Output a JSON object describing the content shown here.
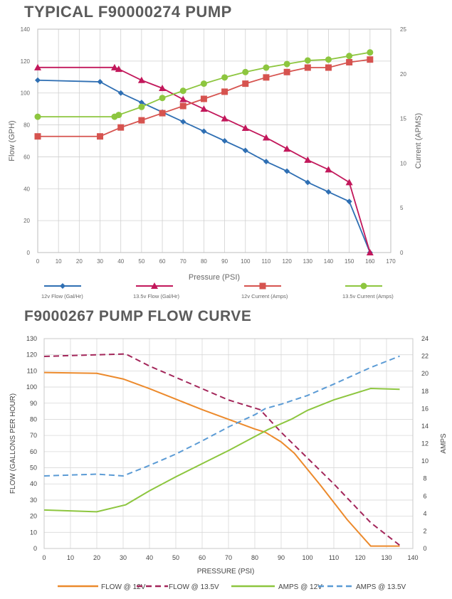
{
  "chart_data": [
    {
      "type": "line",
      "title": "TYPICAL F90000274 PUMP",
      "xlabel": "Pressure (PSI)",
      "ylabel": "Flow (GPH)",
      "y2label": "Current (APMS)",
      "xlim": [
        0,
        170
      ],
      "ylim": [
        0,
        140
      ],
      "y2lim": [
        0,
        25
      ],
      "xticks": [
        "0",
        "10",
        "20",
        "30",
        "40",
        "50",
        "60",
        "70",
        "80",
        "90",
        "100",
        "110",
        "120",
        "130",
        "140",
        "150",
        "160",
        "170"
      ],
      "yticks": [
        "0",
        "20",
        "40",
        "60",
        "80",
        "100",
        "120",
        "140"
      ],
      "y2ticks": [
        "0",
        "5",
        "10",
        "15",
        "20",
        "25"
      ],
      "grid": true,
      "legend": "bottom",
      "series": [
        {
          "name": "12v Flow (Gal/Hr)",
          "axis": "left",
          "color": "#2f6fb3",
          "marker": "diamond",
          "x": [
            0,
            30,
            40,
            50,
            60,
            70,
            80,
            90,
            100,
            110,
            120,
            130,
            140,
            150,
            160
          ],
          "y": [
            108,
            107,
            100,
            94,
            88,
            82,
            76,
            70,
            64,
            57,
            51,
            44,
            38,
            32,
            0
          ]
        },
        {
          "name": "13.5v Flow (Gal/Hr)",
          "axis": "left",
          "color": "#c2185b",
          "marker": "triangle",
          "x": [
            0,
            37,
            39,
            50,
            60,
            70,
            80,
            90,
            100,
            110,
            120,
            130,
            140,
            150,
            160
          ],
          "y": [
            116,
            116,
            115,
            108,
            103,
            96,
            90,
            84,
            78,
            72,
            65,
            58,
            52,
            44,
            0
          ]
        },
        {
          "name": "12v Current (Amps)",
          "axis": "right",
          "color": "#d6534f",
          "marker": "square",
          "x": [
            0,
            30,
            40,
            50,
            60,
            70,
            80,
            90,
            100,
            110,
            120,
            130,
            140,
            150,
            160
          ],
          "y": [
            13.0,
            13.0,
            14.0,
            14.8,
            15.6,
            16.4,
            17.2,
            18.0,
            18.9,
            19.6,
            20.2,
            20.7,
            20.7,
            21.3,
            21.6
          ]
        },
        {
          "name": "13.5v Current (Amps)",
          "axis": "right",
          "color": "#8dc63f",
          "marker": "circle",
          "x": [
            0,
            37,
            39,
            50,
            60,
            70,
            80,
            90,
            100,
            110,
            120,
            130,
            140,
            150,
            160
          ],
          "y": [
            15.2,
            15.2,
            15.4,
            16.3,
            17.3,
            18.1,
            18.9,
            19.6,
            20.2,
            20.7,
            21.1,
            21.5,
            21.6,
            22.0,
            22.4
          ]
        }
      ]
    },
    {
      "type": "line",
      "title": "F9000267 PUMP FLOW CURVE",
      "xlabel": "PRESSURE (PSI)",
      "ylabel": "FLOW (GALLONS PER HOUR)",
      "y2label": "AMPS",
      "xlim": [
        0,
        140
      ],
      "ylim": [
        0,
        130
      ],
      "y2lim": [
        0,
        24
      ],
      "xticks": [
        "0",
        "10",
        "20",
        "30",
        "40",
        "50",
        "60",
        "70",
        "80",
        "90",
        "100",
        "110",
        "120",
        "130",
        "140"
      ],
      "yticks": [
        "0",
        "10",
        "20",
        "30",
        "40",
        "50",
        "60",
        "70",
        "80",
        "90",
        "100",
        "110",
        "120",
        "130"
      ],
      "y2ticks": [
        "0",
        "2",
        "4",
        "6",
        "8",
        "10",
        "12",
        "14",
        "16",
        "18",
        "20",
        "22",
        "24"
      ],
      "grid": true,
      "legend": "bottom",
      "series": [
        {
          "name": "FLOW @ 12V",
          "axis": "left",
          "color": "#ec8a2c",
          "dash": "solid",
          "x": [
            0,
            20,
            30,
            40,
            50,
            60,
            70,
            80,
            84,
            90,
            95,
            105,
            115,
            124,
            135
          ],
          "y": [
            109,
            108.5,
            105,
            99,
            92.5,
            86,
            80,
            74,
            72,
            66,
            59,
            39,
            18,
            1.5,
            1.5
          ]
        },
        {
          "name": "FLOW @ 13.5V",
          "axis": "left",
          "color": "#a3265a",
          "dash": "dashed",
          "x": [
            0,
            20,
            31,
            40,
            50,
            60,
            70,
            82,
            90,
            100,
            110,
            124,
            135
          ],
          "y": [
            119,
            120,
            120.5,
            113,
            106,
            99,
            92,
            86,
            72,
            56,
            40,
            16,
            2
          ]
        },
        {
          "name": "AMPS @ 12V",
          "axis": "right",
          "color": "#8dc63f",
          "dash": "solid",
          "x": [
            0,
            20,
            31,
            40,
            50,
            60,
            70,
            80,
            85,
            94,
            100,
            110,
            124,
            135
          ],
          "y": [
            4.4,
            4.2,
            5.0,
            6.6,
            8.2,
            9.7,
            11.2,
            12.8,
            13.6,
            14.8,
            15.8,
            17.0,
            18.3,
            18.2
          ]
        },
        {
          "name": "AMPS @ 13.5V",
          "axis": "right",
          "color": "#5b9bd5",
          "dash": "dashed",
          "x": [
            0,
            20,
            30,
            40,
            50,
            60,
            70,
            80,
            84,
            90,
            100,
            110,
            124,
            135
          ],
          "y": [
            8.3,
            8.5,
            8.3,
            9.5,
            10.8,
            12.3,
            13.9,
            15.3,
            16.0,
            16.5,
            17.5,
            18.8,
            20.7,
            22.0
          ]
        }
      ]
    }
  ]
}
